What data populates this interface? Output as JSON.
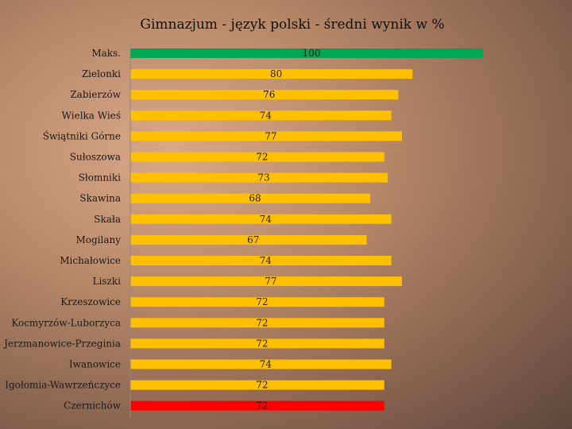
{
  "chart_data": {
    "type": "bar",
    "orientation": "horizontal",
    "title": "Gimnazjum -  język polski - średni wynik w %",
    "categories": [
      "Maks.",
      "Zielonki",
      "Zabierzów",
      "Wielka Wieś",
      "Świątniki Górne",
      "Sułoszowa",
      "Słomniki",
      "Skawina",
      "Skała",
      "Mogilany",
      "Michałowice",
      "Liszki",
      "Krzeszowice",
      "Kocmyrzów-Luborzyca",
      "Jerzmanowice-Przeginia",
      "Iwanowice",
      "Igołomia-Wawrzeńczyce",
      "Czernichów"
    ],
    "values": [
      100,
      80,
      76,
      74,
      77,
      72,
      73,
      68,
      74,
      67,
      74,
      77,
      72,
      72,
      72,
      74,
      72,
      72
    ],
    "colors": [
      "#00a651",
      "#ffc000",
      "#ffc000",
      "#ffc000",
      "#ffc000",
      "#ffc000",
      "#ffc000",
      "#ffc000",
      "#ffc000",
      "#ffc000",
      "#ffc000",
      "#ffc000",
      "#ffc000",
      "#ffc000",
      "#ffc000",
      "#ffc000",
      "#ffc000",
      "#ff0000"
    ],
    "xlim": [
      0,
      100
    ],
    "grid": false,
    "legend": "none"
  }
}
